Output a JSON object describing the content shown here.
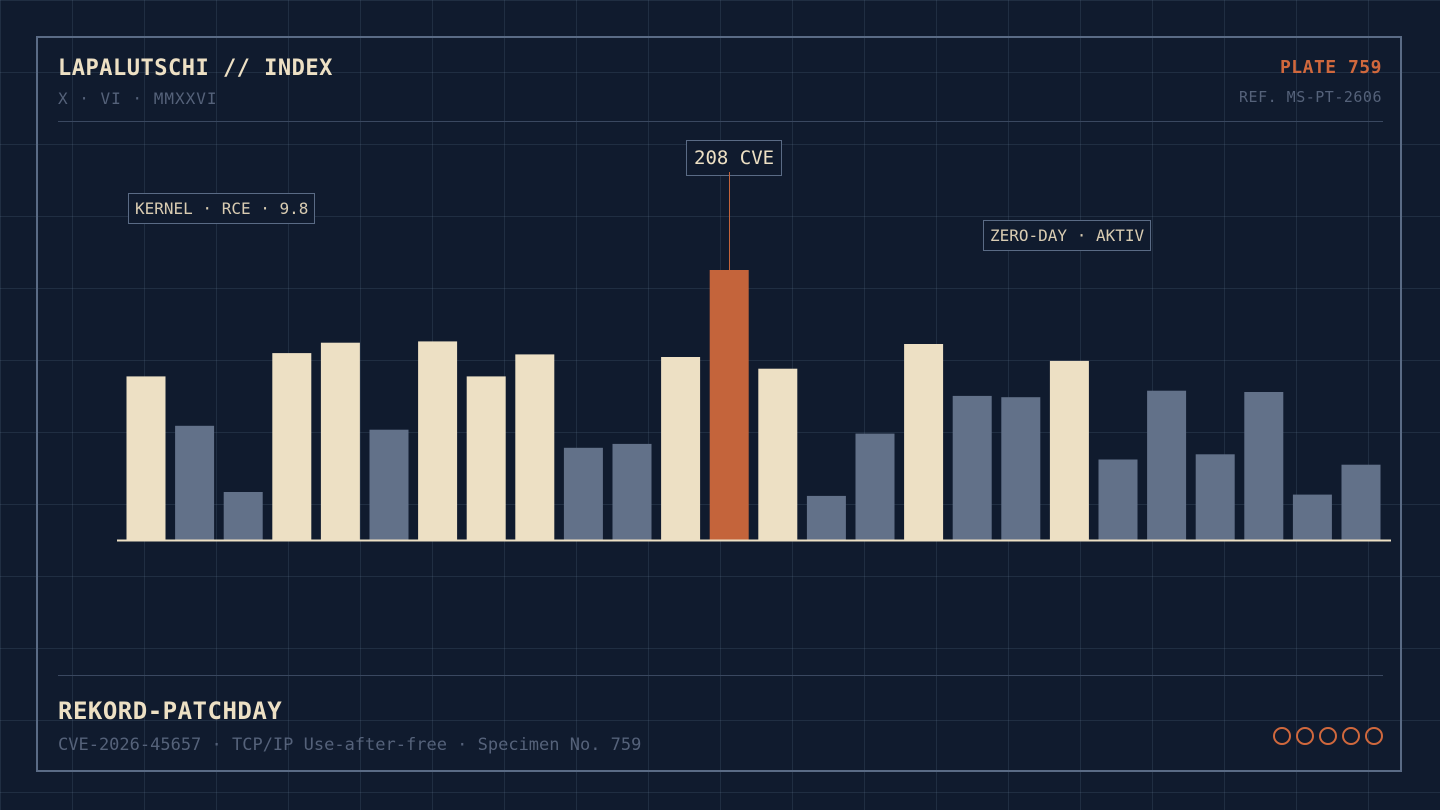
{
  "header": {
    "title": "LAPALUTSCHI // INDEX",
    "subtitle": "X · VI · MMXXVI",
    "plate": "PLATE 759",
    "ref": "REF. MS-PT-2606"
  },
  "annotations": {
    "left": "KERNEL · RCE · 9.8",
    "peak": "208 CVE",
    "right": "ZERO-DAY · AKTIV"
  },
  "footer": {
    "title": "REKORD-PATCHDAY",
    "subtitle": "CVE-2026-45657 · TCP/IP Use-after-free · Specimen No. 759",
    "rating_filled": 0,
    "rating_total": 5
  },
  "colors": {
    "background": "#101b2e",
    "cream": "#ede0c4",
    "slate": "#627189",
    "accent": "#c4643b"
  },
  "chart_data": {
    "type": "bar",
    "title": "",
    "xlabel": "",
    "ylabel": "",
    "ylim": [
      0,
      270
    ],
    "grid": true,
    "values": [
      126,
      88,
      37,
      144,
      152,
      85,
      153,
      126,
      143,
      71,
      74,
      141,
      208,
      132,
      34,
      82,
      151,
      111,
      110,
      138,
      62,
      115,
      66,
      114,
      35,
      58
    ],
    "highlight": [
      true,
      false,
      false,
      true,
      true,
      false,
      true,
      true,
      true,
      false,
      false,
      true,
      true,
      true,
      false,
      false,
      true,
      false,
      false,
      true,
      false,
      false,
      false,
      false,
      false,
      false
    ],
    "peak_index": 12
  }
}
